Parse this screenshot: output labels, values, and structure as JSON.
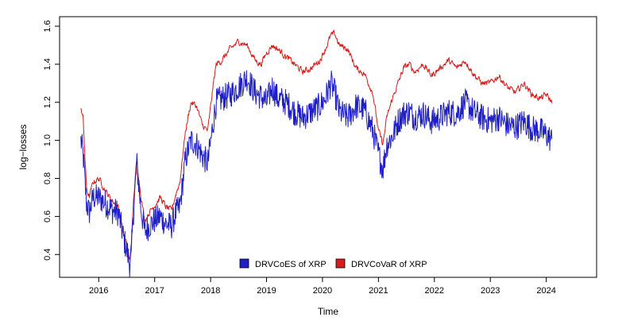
{
  "chart_data": {
    "type": "line",
    "title": "",
    "xlabel": "Time",
    "ylabel": "log−losses",
    "xlim": [
      2015.3,
      2024.9
    ],
    "ylim": [
      0.28,
      1.65
    ],
    "x_ticks": [
      2016,
      2017,
      2018,
      2019,
      2020,
      2021,
      2022,
      2023,
      2024
    ],
    "x_tick_labels": [
      "2016",
      "2017",
      "2018",
      "2019",
      "2020",
      "2021",
      "2022",
      "2023",
      "2024"
    ],
    "y_ticks": [
      0.4,
      0.6,
      0.8,
      1.0,
      1.2,
      1.4,
      1.6
    ],
    "y_tick_labels": [
      "0.4",
      "0.6",
      "0.8",
      "1.0",
      "1.2",
      "1.4",
      "1.6"
    ],
    "grid": false,
    "legend_position": "bottom-center",
    "series": [
      {
        "name": "DRVCoES of XRP",
        "color": "#1f1fc8",
        "noise": 0.08,
        "x": [
          2015.68,
          2015.72,
          2015.78,
          2015.83,
          2015.9,
          2016.0,
          2016.08,
          2016.15,
          2016.25,
          2016.35,
          2016.45,
          2016.52,
          2016.55,
          2016.58,
          2016.62,
          2016.68,
          2016.75,
          2016.82,
          2016.9,
          2017.0,
          2017.1,
          2017.2,
          2017.3,
          2017.38,
          2017.45,
          2017.55,
          2017.65,
          2017.75,
          2017.85,
          2017.95,
          2018.05,
          2018.1,
          2018.2,
          2018.35,
          2018.5,
          2018.65,
          2018.8,
          2018.9,
          2019.0,
          2019.1,
          2019.2,
          2019.35,
          2019.5,
          2019.65,
          2019.8,
          2019.95,
          2020.05,
          2020.15,
          2020.22,
          2020.3,
          2020.45,
          2020.6,
          2020.75,
          2020.9,
          2021.0,
          2021.08,
          2021.15,
          2021.25,
          2021.35,
          2021.45,
          2021.55,
          2021.65,
          2021.8,
          2021.95,
          2022.1,
          2022.25,
          2022.4,
          2022.55,
          2022.7,
          2022.85,
          2023.0,
          2023.15,
          2023.3,
          2023.45,
          2023.6,
          2023.75,
          2023.9,
          2024.0,
          2024.1
        ],
        "y": [
          1.0,
          0.93,
          0.67,
          0.62,
          0.7,
          0.7,
          0.68,
          0.66,
          0.63,
          0.62,
          0.48,
          0.4,
          0.35,
          0.4,
          0.62,
          0.88,
          0.65,
          0.52,
          0.55,
          0.58,
          0.6,
          0.56,
          0.55,
          0.62,
          0.65,
          0.9,
          1.0,
          0.98,
          0.92,
          0.88,
          1.1,
          1.2,
          1.22,
          1.24,
          1.28,
          1.33,
          1.25,
          1.23,
          1.2,
          1.28,
          1.22,
          1.2,
          1.15,
          1.12,
          1.15,
          1.18,
          1.22,
          1.3,
          1.25,
          1.15,
          1.12,
          1.18,
          1.16,
          1.05,
          0.93,
          0.85,
          0.98,
          1.02,
          1.1,
          1.14,
          1.15,
          1.12,
          1.14,
          1.1,
          1.12,
          1.15,
          1.14,
          1.2,
          1.15,
          1.12,
          1.1,
          1.12,
          1.08,
          1.07,
          1.1,
          1.06,
          1.05,
          1.03,
          1.0
        ]
      },
      {
        "name": "DRVCoVaR of XRP",
        "color": "#d81b1b",
        "noise": 0.03,
        "x": [
          2015.68,
          2015.72,
          2015.78,
          2015.83,
          2015.9,
          2016.0,
          2016.08,
          2016.15,
          2016.25,
          2016.35,
          2016.45,
          2016.52,
          2016.55,
          2016.58,
          2016.62,
          2016.68,
          2016.75,
          2016.82,
          2016.9,
          2017.0,
          2017.1,
          2017.2,
          2017.3,
          2017.38,
          2017.45,
          2017.55,
          2017.65,
          2017.75,
          2017.85,
          2017.95,
          2018.05,
          2018.1,
          2018.2,
          2018.35,
          2018.5,
          2018.65,
          2018.8,
          2018.9,
          2019.0,
          2019.1,
          2019.2,
          2019.35,
          2019.5,
          2019.65,
          2019.8,
          2019.95,
          2020.05,
          2020.15,
          2020.22,
          2020.3,
          2020.45,
          2020.6,
          2020.75,
          2020.9,
          2021.0,
          2021.08,
          2021.15,
          2021.25,
          2021.35,
          2021.45,
          2021.55,
          2021.65,
          2021.8,
          2021.95,
          2022.1,
          2022.25,
          2022.4,
          2022.55,
          2022.7,
          2022.85,
          2023.0,
          2023.15,
          2023.3,
          2023.45,
          2023.6,
          2023.75,
          2023.9,
          2024.0,
          2024.1
        ],
        "y": [
          1.18,
          1.12,
          0.75,
          0.7,
          0.78,
          0.8,
          0.76,
          0.72,
          0.68,
          0.65,
          0.5,
          0.43,
          0.36,
          0.42,
          0.68,
          0.9,
          0.72,
          0.58,
          0.62,
          0.66,
          0.7,
          0.65,
          0.63,
          0.72,
          0.78,
          1.05,
          1.2,
          1.18,
          1.08,
          1.05,
          1.3,
          1.4,
          1.42,
          1.48,
          1.52,
          1.5,
          1.42,
          1.4,
          1.46,
          1.5,
          1.48,
          1.44,
          1.4,
          1.36,
          1.38,
          1.42,
          1.48,
          1.55,
          1.56,
          1.5,
          1.48,
          1.38,
          1.35,
          1.25,
          1.05,
          0.98,
          1.12,
          1.22,
          1.3,
          1.38,
          1.4,
          1.36,
          1.4,
          1.34,
          1.38,
          1.42,
          1.38,
          1.42,
          1.35,
          1.3,
          1.3,
          1.34,
          1.28,
          1.25,
          1.3,
          1.24,
          1.22,
          1.24,
          1.2
        ]
      }
    ]
  }
}
